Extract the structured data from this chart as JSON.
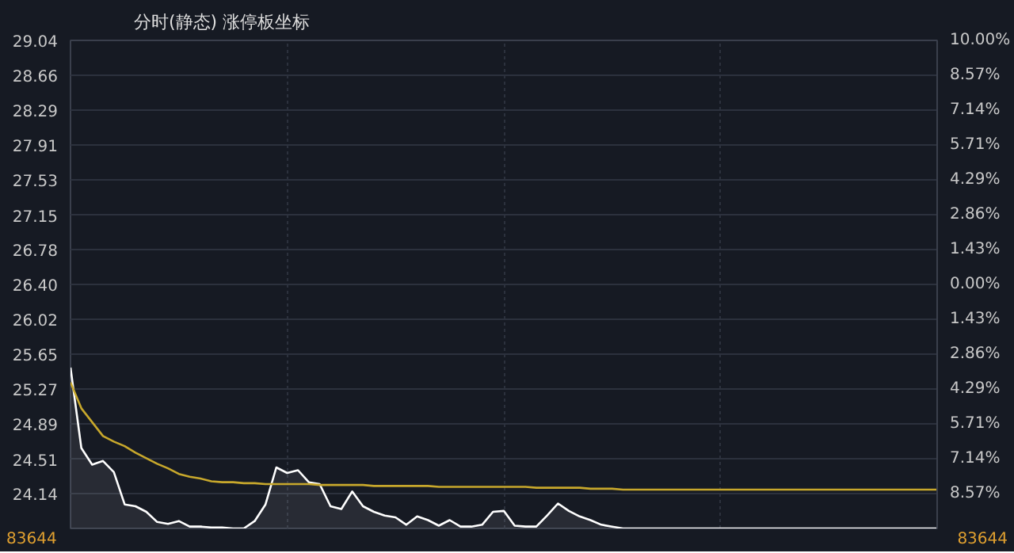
{
  "chart_data": {
    "type": "line",
    "title": "分时(静态) 涨停板坐标",
    "categories": [
      null,
      null,
      null,
      null,
      null,
      null,
      null,
      null,
      null,
      null,
      null,
      null,
      null,
      null,
      null,
      null,
      null,
      null,
      null,
      null,
      null,
      null,
      null,
      null,
      null,
      null,
      null,
      null,
      null,
      null,
      null,
      null,
      null,
      null,
      null,
      null,
      null,
      null,
      null,
      null,
      null,
      null,
      null,
      null,
      null,
      null,
      null,
      null,
      null,
      null,
      null,
      null,
      null,
      null,
      null,
      null,
      null,
      null,
      null,
      null,
      null,
      null,
      null,
      null,
      null,
      null,
      null,
      null,
      null,
      null,
      null,
      null,
      null,
      null,
      null,
      null,
      null,
      null,
      null,
      null,
      null
    ],
    "ylim": [
      23.76,
      29.04
    ],
    "yticks": [
      {
        "value": 23.76,
        "label": null
      },
      24.14,
      24.51,
      24.89,
      25.27,
      25.65,
      26.02,
      {
        "value": 26.4,
        "label": "26.40"
      },
      26.78,
      27.15,
      27.53,
      27.91,
      28.29,
      28.66,
      29.04
    ],
    "y2lim": [
      -10,
      10
    ],
    "y2ticks": [
      {
        "value": -10,
        "label": null
      },
      {
        "value": -8.57,
        "label": "8.57%"
      },
      {
        "value": -7.14,
        "label": "7.14%"
      },
      {
        "value": -5.71,
        "label": "5.71%"
      },
      {
        "value": -4.29,
        "label": "4.29%"
      },
      {
        "value": -2.86,
        "label": "2.86%"
      },
      {
        "value": -1.43,
        "label": "1.43%"
      },
      {
        "value": 0,
        "label": "0.00%"
      },
      {
        "value": 1.43,
        "label": "1.43%"
      },
      {
        "value": 2.86,
        "label": "2.86%"
      },
      {
        "value": 4.29,
        "label": "4.29%"
      },
      {
        "value": 5.71,
        "label": "5.71%"
      },
      {
        "value": 7.14,
        "label": "7.14%"
      },
      {
        "value": 8.57,
        "label": "8.57%"
      },
      {
        "value": 10,
        "label": "10.00%"
      }
    ],
    "annotations": [
      "83644",
      "83644"
    ],
    "grid": true,
    "marker": "none",
    "line_style": "solid",
    "series": [
      {
        "type": "area",
        "color": "#ffffff",
        "values": [
          25.5,
          24.63,
          24.45,
          24.49,
          24.37,
          24.02,
          24.0,
          23.94,
          23.83,
          23.81,
          23.84,
          23.78,
          23.78,
          23.77,
          23.77,
          23.76,
          23.76,
          23.84,
          24.02,
          24.42,
          24.36,
          24.39,
          24.26,
          24.24,
          24.0,
          23.97,
          24.16,
          24.0,
          23.94,
          23.9,
          23.88,
          23.8,
          23.89,
          23.85,
          23.79,
          23.85,
          23.78,
          23.78,
          23.8,
          23.94,
          23.95,
          23.79,
          23.78,
          23.78,
          23.9,
          24.03,
          23.95,
          23.89,
          23.85,
          23.8,
          23.78,
          23.76,
          23.76,
          23.76,
          23.76,
          23.76,
          23.76,
          23.76,
          23.76,
          23.76,
          23.76,
          23.76,
          23.76,
          23.76,
          23.76,
          23.76,
          23.76,
          23.76,
          23.76,
          23.76,
          23.76,
          23.76,
          23.76,
          23.76,
          23.76,
          23.76,
          23.76,
          23.76,
          23.76,
          23.76,
          23.76
        ]
      },
      {
        "color": "#c8a82c",
        "values": [
          25.34,
          25.06,
          24.91,
          24.76,
          24.7,
          24.65,
          24.58,
          24.52,
          24.46,
          24.41,
          24.35,
          24.32,
          24.3,
          24.27,
          24.26,
          24.26,
          24.25,
          24.25,
          24.24,
          24.24,
          24.24,
          24.24,
          24.24,
          24.23,
          24.23,
          24.23,
          24.23,
          24.23,
          24.22,
          24.22,
          24.22,
          24.22,
          24.22,
          24.22,
          24.21,
          24.21,
          24.21,
          24.21,
          24.21,
          24.21,
          24.21,
          24.21,
          24.21,
          24.2,
          24.2,
          24.2,
          24.2,
          24.2,
          24.19,
          24.19,
          24.19,
          24.18,
          24.18,
          24.18,
          24.18,
          24.18,
          24.18,
          24.18,
          24.18,
          24.18,
          24.18,
          24.18,
          24.18,
          24.18,
          24.18,
          24.18,
          24.18,
          24.18,
          24.18,
          24.18,
          24.18,
          24.18,
          24.18,
          24.18,
          24.18,
          24.18,
          24.18,
          24.18,
          24.18,
          24.18,
          24.18
        ]
      }
    ]
  }
}
